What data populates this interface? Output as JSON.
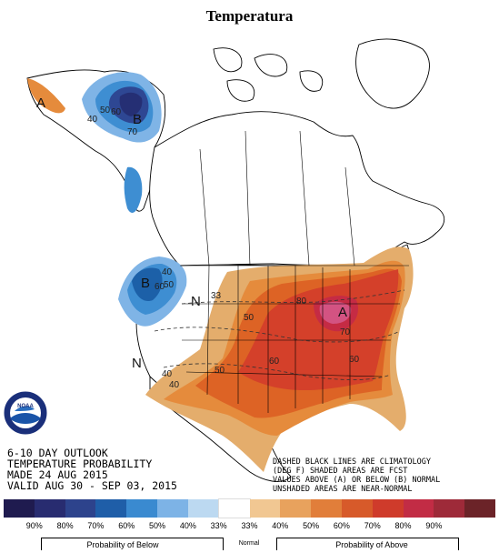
{
  "title": "Temperatura",
  "map": {
    "header_lines": [
      "6-10 DAY OUTLOOK",
      "TEMPERATURE PROBABILITY",
      "MADE  24 AUG 2015",
      "VALID  AUG 30 - SEP 03, 2015"
    ],
    "note_lines": [
      "DASHED BLACK LINES ARE CLIMATOLOGY",
      "(DEG F) SHADED AREAS ARE FCST",
      "VALUES ABOVE (A) OR BELOW (B) NORMAL",
      "UNSHADED AREAS ARE NEAR-NORMAL"
    ],
    "logo_text": "NOAA",
    "region_letters": {
      "alaska_above": "A",
      "alaska_below": "B",
      "northwest_below": "B",
      "north_normal": "N",
      "southwest_normal": "N",
      "east_above": "A"
    },
    "contour_labels": {
      "ak_40": "40",
      "ak_50": "50",
      "ak_60": "60",
      "ak_70": "70",
      "nw_40": "40",
      "nw_50": "50",
      "nw_60": "60",
      "c_33": "33",
      "c_40": "40",
      "c_50a": "50",
      "c_50b": "50",
      "c_60": "60",
      "c_70": "70",
      "c_80": "80",
      "c_60b": "60",
      "c_40b": "40"
    },
    "colors": {
      "below_90": "#241a55",
      "below_80": "#252f74",
      "below_70": "#2e4793",
      "below_60": "#1c60a8",
      "below_50": "#3e8ed2",
      "below_40": "#7fb4e6",
      "normal": "#ffffff",
      "above_40": "#e4ad6c",
      "above_50": "#e58b3c",
      "above_60": "#dd6325",
      "above_70": "#d4402a",
      "above_80": "#c52b44",
      "above_90": "#8b2b2e",
      "high_pink": "#d55a8d"
    }
  },
  "legend": {
    "swatches": [
      {
        "color": "#1f1b4f"
      },
      {
        "color": "#282c70"
      },
      {
        "color": "#2d438c"
      },
      {
        "color": "#1f5ea8"
      },
      {
        "color": "#3a8ad0"
      },
      {
        "color": "#7db3e6"
      },
      {
        "color": "#bcd9f1"
      },
      {
        "color": "#ffffff"
      },
      {
        "color": "#f1c792"
      },
      {
        "color": "#e8a25d"
      },
      {
        "color": "#e17e3a"
      },
      {
        "color": "#d75a2a"
      },
      {
        "color": "#cf3b2b"
      },
      {
        "color": "#c22c45"
      },
      {
        "color": "#9e2a39"
      },
      {
        "color": "#6b2328"
      }
    ],
    "ticks": [
      "90%",
      "80%",
      "70%",
      "60%",
      "50%",
      "40%",
      "33%",
      "33%",
      "40%",
      "50%",
      "60%",
      "70%",
      "80%",
      "90%"
    ],
    "below_caption": "Probability of Below",
    "normal_caption": "Normal",
    "above_caption": "Probability of Above"
  }
}
